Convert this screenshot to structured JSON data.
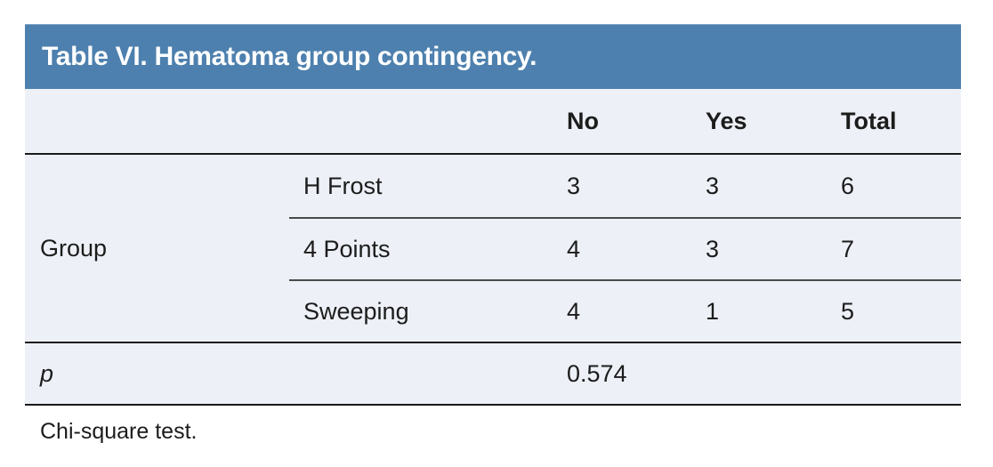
{
  "title": "Table VI. Hematoma group contingency.",
  "columns": [
    "No",
    "Yes",
    "Total"
  ],
  "group": {
    "label": "Group",
    "rows": [
      {
        "name": "H Frost",
        "no": "3",
        "yes": "3",
        "total": "6"
      },
      {
        "name": "4 Points",
        "no": "4",
        "yes": "3",
        "total": "7"
      },
      {
        "name": "Sweeping",
        "no": "4",
        "yes": "1",
        "total": "5"
      }
    ]
  },
  "p_row": {
    "label": "p",
    "value": "0.574"
  },
  "footnote": "Chi-square test.",
  "colors": {
    "header_bg": "#4d80ae",
    "body_bg": "#edf0f7",
    "rule_dark": "#1a1a1a",
    "rule_mid": "#4a4a4a",
    "text": "#1c1c1c",
    "title_text": "#ffffff"
  }
}
